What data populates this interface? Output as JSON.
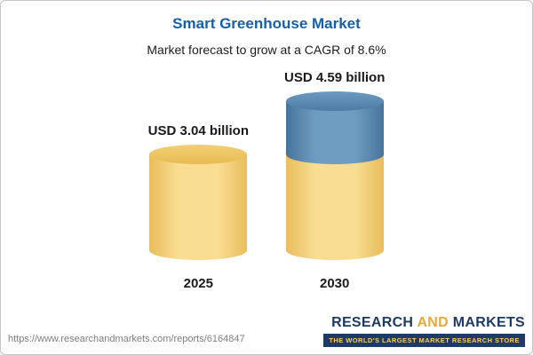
{
  "header": {
    "title": "Smart Greenhouse Market",
    "subtitle": "Market forecast to grow at a CAGR of 8.6%"
  },
  "chart_data": {
    "type": "bar",
    "subtype": "cylinder",
    "title": "Smart Greenhouse Market",
    "subtitle": "Market forecast to grow at a CAGR of 8.6%",
    "unit": "USD billion",
    "cagr": "8.6%",
    "categories": [
      "2025",
      "2030"
    ],
    "values": [
      3.04,
      4.59
    ],
    "value_labels": [
      "USD 3.04 billion",
      "USD 4.59 billion"
    ],
    "series": [
      {
        "name": "base",
        "values": [
          3.04,
          3.04
        ]
      },
      {
        "name": "growth",
        "values": [
          0,
          1.55
        ]
      }
    ],
    "ylim": [
      0,
      5
    ],
    "legend": "none",
    "grid": false,
    "colors": {
      "base": "#f3cf6f",
      "growth": "#5b87ae"
    }
  },
  "footer": {
    "url": "https://www.researchandmarkets.com/reports/6164847",
    "logo": {
      "research": "RESEARCH",
      "and": "AND",
      "markets": "MARKETS",
      "tagline": "THE WORLD'S LARGEST MARKET RESEARCH STORE"
    }
  }
}
